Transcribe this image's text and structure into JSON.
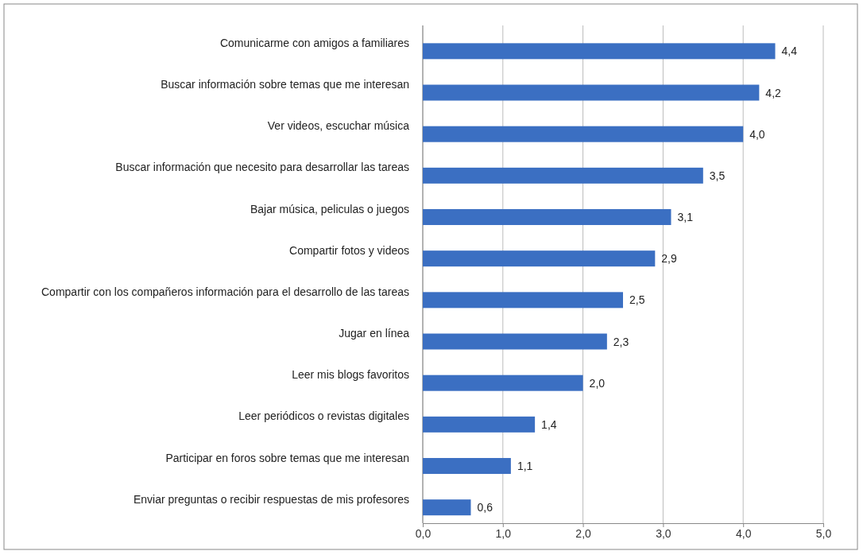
{
  "chart_data": {
    "type": "bar",
    "orientation": "horizontal",
    "categories": [
      "Comunicarme con amigos a familiares",
      "Buscar información sobre temas que me interesan",
      "Ver videos, escuchar música",
      "Buscar información que necesito para desarrollar las tareas",
      "Bajar música, peliculas o juegos",
      "Compartir fotos y videos",
      "Compartir con los compañeros información para el desarrollo de las tareas",
      "Jugar en línea",
      "Leer mis blogs favoritos",
      "Leer periódicos o revistas digitales",
      "Participar en foros sobre temas que me interesan",
      "Enviar preguntas o recibir respuestas de mis profesores"
    ],
    "values": [
      4.4,
      4.2,
      4.0,
      3.5,
      3.1,
      2.9,
      2.5,
      2.3,
      2.0,
      1.4,
      1.1,
      0.6
    ],
    "value_labels": [
      "4,4",
      "4,2",
      "4,0",
      "3,5",
      "3,1",
      "2,9",
      "2,5",
      "2,3",
      "2,0",
      "1,4",
      "1,1",
      "0,6"
    ],
    "color": "#3b6fc2",
    "xlim": [
      0,
      5
    ],
    "xticks": [
      {
        "value": 0,
        "label": "0,0"
      },
      {
        "value": 1,
        "label": "1,0"
      },
      {
        "value": 2,
        "label": "2,0"
      },
      {
        "value": 3,
        "label": "3,0"
      },
      {
        "value": 4,
        "label": "4,0"
      },
      {
        "value": 5,
        "label": "5,0"
      }
    ],
    "grid": "x"
  }
}
